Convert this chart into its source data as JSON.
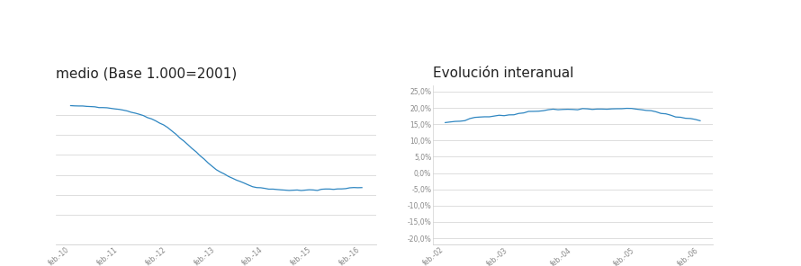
{
  "title_left": "medio (Base 1.000=2001)",
  "title_right": "Evolución interanual",
  "background_color": "#ffffff",
  "line_color": "#2e86c1",
  "left_xticks": [
    "feb.-10",
    "feb.-11",
    "feb.-12",
    "feb.-13",
    "feb.-14",
    "feb.-15",
    "feb.-16"
  ],
  "right_xticks": [
    "feb.-02",
    "feb.-03",
    "feb.-04",
    "feb.-05",
    "feb.-06"
  ],
  "left_ylim": [
    55,
    135
  ],
  "left_yticks": [
    70,
    80,
    90,
    100,
    110,
    120
  ],
  "right_ylim": [
    -22,
    27
  ],
  "right_yticks": [
    25.0,
    20.0,
    15.0,
    10.0,
    5.0,
    0.0,
    -5.0,
    -10.0,
    -15.0,
    -20.0
  ],
  "right_ytick_labels": [
    "25,0%",
    "20,0%",
    "15,0%",
    "10,0%",
    "5,0%",
    "0,0%",
    "-5,0%",
    "-10,0%",
    "-15,0%",
    "-20,0%"
  ],
  "grid_color": "#d0d0d0",
  "tick_color": "#888888",
  "title_fontsize": 11,
  "tick_fontsize": 5.5
}
